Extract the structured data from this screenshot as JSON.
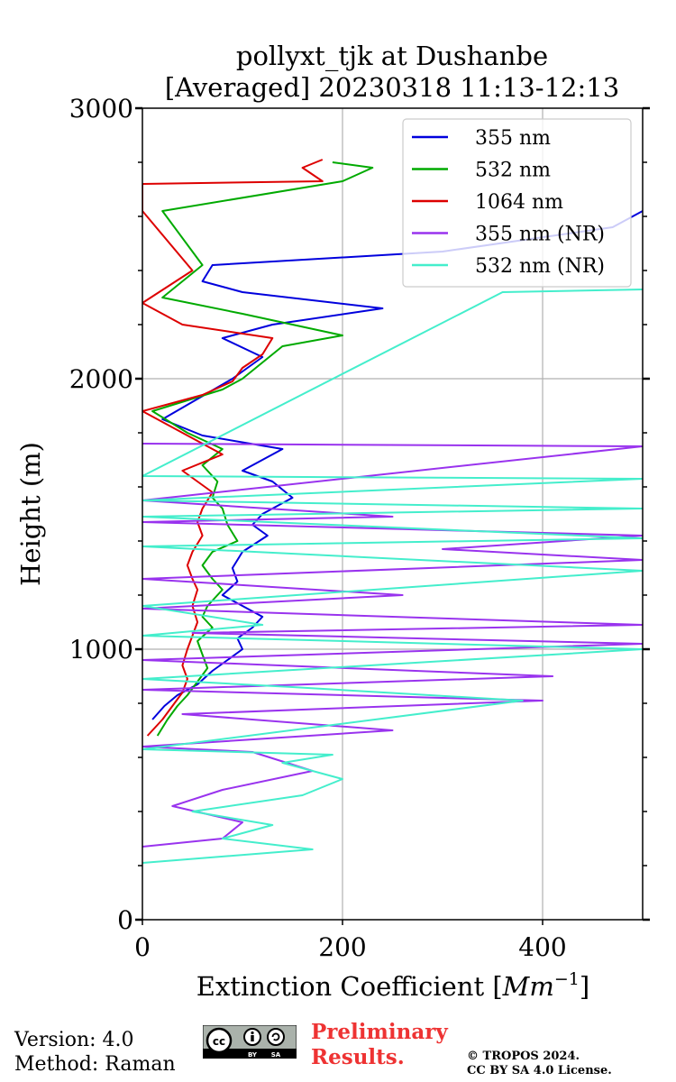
{
  "chart_data": {
    "type": "line",
    "orientation": "vertical-profile",
    "title": [
      "pollyxt_tjk at Dushanbe",
      "[Averaged] 20230318 11:13-12:13"
    ],
    "xlabel": "Extinction Coefficient [",
    "xlabel_unit": "Mm",
    "xlabel_exp": "−1",
    "xlabel_close": "]",
    "ylabel": "Height (m)",
    "xlim": [
      0,
      500
    ],
    "ylim": [
      0,
      3000
    ],
    "x_ticks": [
      0,
      200,
      400
    ],
    "x_tick_labels": [
      "0",
      "200",
      "400"
    ],
    "y_ticks": [
      0,
      1000,
      2000,
      3000
    ],
    "y_tick_labels": [
      "0",
      "1000",
      "2000",
      "3000"
    ],
    "y_minor_ticks": [
      200,
      400,
      600,
      800,
      1200,
      1400,
      1600,
      1800,
      2200,
      2400,
      2600,
      2800
    ],
    "grid": true,
    "legend_position": "top-right",
    "series": [
      {
        "name": "355 nm",
        "color": "#0000dd",
        "points": [
          [
            10,
            740
          ],
          [
            22,
            790
          ],
          [
            35,
            830
          ],
          [
            55,
            870
          ],
          [
            70,
            920
          ],
          [
            85,
            960
          ],
          [
            100,
            1000
          ],
          [
            95,
            1040
          ],
          [
            110,
            1080
          ],
          [
            120,
            1120
          ],
          [
            100,
            1160
          ],
          [
            80,
            1200
          ],
          [
            95,
            1250
          ],
          [
            90,
            1300
          ],
          [
            100,
            1360
          ],
          [
            125,
            1420
          ],
          [
            110,
            1460
          ],
          [
            120,
            1500
          ],
          [
            150,
            1560
          ],
          [
            130,
            1620
          ],
          [
            100,
            1660
          ],
          [
            140,
            1740
          ],
          [
            60,
            1790
          ],
          [
            20,
            1850
          ],
          [
            90,
            2000
          ],
          [
            120,
            2080
          ],
          [
            80,
            2150
          ],
          [
            130,
            2200
          ],
          [
            240,
            2260
          ],
          [
            100,
            2320
          ],
          [
            60,
            2360
          ],
          [
            70,
            2420
          ],
          [
            300,
            2470
          ],
          [
            470,
            2560
          ],
          [
            500,
            2620
          ]
        ]
      },
      {
        "name": "532 nm",
        "color": "#00aa00",
        "points": [
          [
            15,
            680
          ],
          [
            25,
            740
          ],
          [
            35,
            790
          ],
          [
            45,
            830
          ],
          [
            55,
            880
          ],
          [
            65,
            930
          ],
          [
            60,
            980
          ],
          [
            55,
            1030
          ],
          [
            70,
            1080
          ],
          [
            60,
            1120
          ],
          [
            65,
            1160
          ],
          [
            80,
            1220
          ],
          [
            70,
            1260
          ],
          [
            60,
            1310
          ],
          [
            70,
            1360
          ],
          [
            95,
            1400
          ],
          [
            85,
            1460
          ],
          [
            80,
            1520
          ],
          [
            70,
            1560
          ],
          [
            75,
            1620
          ],
          [
            60,
            1680
          ],
          [
            80,
            1740
          ],
          [
            45,
            1800
          ],
          [
            10,
            1880
          ],
          [
            80,
            1960
          ],
          [
            100,
            2000
          ],
          [
            120,
            2060
          ],
          [
            140,
            2120
          ],
          [
            200,
            2160
          ],
          [
            100,
            2240
          ],
          [
            20,
            2300
          ],
          [
            60,
            2420
          ],
          [
            20,
            2620
          ],
          [
            200,
            2730
          ],
          [
            230,
            2780
          ],
          [
            190,
            2800
          ]
        ]
      },
      {
        "name": "1064 nm",
        "color": "#dd0000",
        "points": [
          [
            5,
            680
          ],
          [
            20,
            740
          ],
          [
            30,
            790
          ],
          [
            40,
            840
          ],
          [
            45,
            890
          ],
          [
            40,
            940
          ],
          [
            45,
            1000
          ],
          [
            50,
            1050
          ],
          [
            55,
            1100
          ],
          [
            50,
            1160
          ],
          [
            55,
            1220
          ],
          [
            50,
            1260
          ],
          [
            45,
            1310
          ],
          [
            50,
            1360
          ],
          [
            60,
            1420
          ],
          [
            55,
            1470
          ],
          [
            60,
            1520
          ],
          [
            70,
            1580
          ],
          [
            40,
            1660
          ],
          [
            80,
            1720
          ],
          [
            50,
            1780
          ],
          [
            0,
            1880
          ],
          [
            60,
            1940
          ],
          [
            90,
            1990
          ],
          [
            100,
            2040
          ],
          [
            120,
            2090
          ],
          [
            130,
            2150
          ],
          [
            40,
            2200
          ],
          [
            0,
            2280
          ],
          [
            50,
            2400
          ],
          [
            0,
            2620
          ],
          [
            0,
            2720
          ],
          [
            180,
            2730
          ],
          [
            160,
            2780
          ],
          [
            180,
            2810
          ]
        ]
      },
      {
        "name": "355 nm (NR)",
        "color": "#9933ee",
        "points": [
          [
            0,
            270
          ],
          [
            80,
            300
          ],
          [
            100,
            360
          ],
          [
            30,
            420
          ],
          [
            80,
            480
          ],
          [
            170,
            550
          ],
          [
            110,
            620
          ],
          [
            0,
            640
          ],
          [
            250,
            700
          ],
          [
            40,
            760
          ],
          [
            400,
            810
          ],
          [
            0,
            850
          ],
          [
            410,
            900
          ],
          [
            0,
            960
          ],
          [
            500,
            1020
          ],
          [
            50,
            1060
          ],
          [
            500,
            1090
          ],
          [
            0,
            1150
          ],
          [
            260,
            1200
          ],
          [
            0,
            1260
          ],
          [
            500,
            1330
          ],
          [
            300,
            1370
          ],
          [
            500,
            1420
          ],
          [
            0,
            1470
          ],
          [
            250,
            1490
          ],
          [
            0,
            1550
          ],
          [
            500,
            1750
          ],
          [
            0,
            1760
          ]
        ]
      },
      {
        "name": "532 nm (NR)",
        "color": "#44eecc",
        "points": [
          [
            0,
            210
          ],
          [
            170,
            260
          ],
          [
            80,
            300
          ],
          [
            130,
            350
          ],
          [
            50,
            400
          ],
          [
            160,
            460
          ],
          [
            200,
            520
          ],
          [
            140,
            580
          ],
          [
            190,
            610
          ],
          [
            0,
            630
          ],
          [
            380,
            810
          ],
          [
            150,
            860
          ],
          [
            0,
            890
          ],
          [
            500,
            1000
          ],
          [
            0,
            1050
          ],
          [
            120,
            1090
          ],
          [
            0,
            1160
          ],
          [
            500,
            1290
          ],
          [
            0,
            1380
          ],
          [
            500,
            1410
          ],
          [
            0,
            1490
          ],
          [
            500,
            1520
          ],
          [
            0,
            1550
          ],
          [
            500,
            1630
          ],
          [
            0,
            1640
          ],
          [
            360,
            2320
          ],
          [
            500,
            2330
          ]
        ]
      }
    ]
  },
  "footer": {
    "version": "Version: 4.0",
    "method": "Method: Raman",
    "preliminary_line1": "Preliminary",
    "preliminary_line2": "Results.",
    "copyright_line1": "© TROPOS 2024.",
    "copyright_line2": "CC BY SA 4.0 License.",
    "license_badge": "cc-by-sa-badge"
  }
}
